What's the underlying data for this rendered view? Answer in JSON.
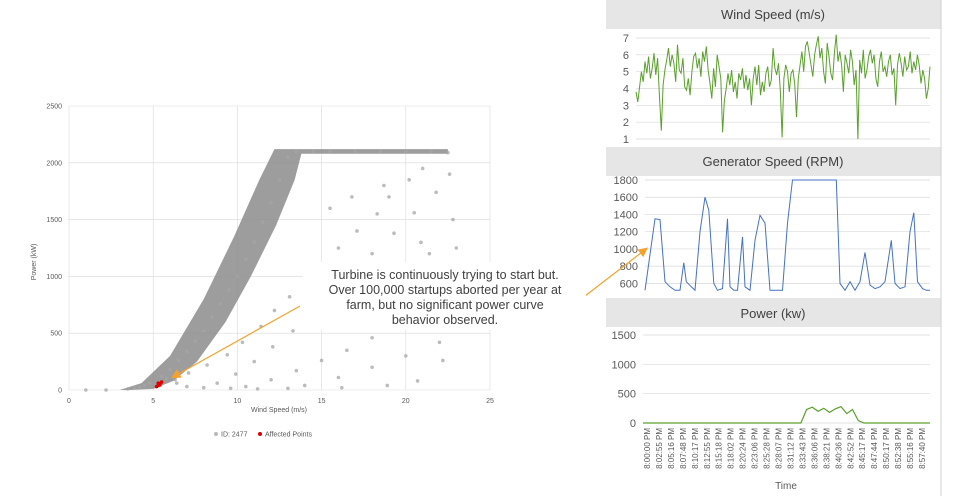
{
  "colors": {
    "scatter": "#8c8c8c",
    "affected": "#e00000",
    "wind": "#5aa02c",
    "gen": "#4472c4",
    "power": "#5aa02c",
    "arrow": "#f4a22c",
    "panel_header": "#e6e6e6",
    "grid": "#d9d9d9",
    "axis_text": "#595959"
  },
  "callout": {
    "lines": [
      "Turbine is continuously trying to start but.",
      "Over 100,000 startups aborted per year at",
      "farm, but no significant power curve",
      "behavior observed."
    ]
  },
  "chart_data": [
    {
      "id": "power-curve",
      "type": "scatter",
      "xlabel": "Wind Speed (m/s)",
      "ylabel": "Power (kW)",
      "xlim": [
        0,
        25
      ],
      "ylim": [
        0,
        2500
      ],
      "x_ticks": [
        "0",
        "5",
        "10",
        "15",
        "20",
        "25"
      ],
      "y_ticks": [
        "0",
        "500",
        "1000",
        "1500",
        "2000",
        "2500"
      ],
      "grid": true,
      "legend_position": "bottom",
      "legend": [
        "ID: 2477",
        "Affected Points"
      ],
      "series": [
        {
          "name": "ID: 2477",
          "description_curve": [
            [
              3,
              0
            ],
            [
              5,
              80
            ],
            [
              7,
              400
            ],
            [
              9,
              900
            ],
            [
              11,
              1450
            ],
            [
              12.5,
              1900
            ],
            [
              13.2,
              2100
            ],
            [
              22,
              2100
            ]
          ],
          "points": [
            [
              3.5,
              10
            ],
            [
              4.2,
              25
            ],
            [
              4.8,
              60
            ],
            [
              5.5,
              120
            ],
            [
              6.0,
              180
            ],
            [
              6.5,
              260
            ],
            [
              7.0,
              340
            ],
            [
              7.5,
              430
            ],
            [
              8.0,
              520
            ],
            [
              8.5,
              640
            ],
            [
              9.0,
              760
            ],
            [
              9.5,
              880
            ],
            [
              10.0,
              1000
            ],
            [
              10.5,
              1150
            ],
            [
              11.0,
              1300
            ],
            [
              11.5,
              1480
            ],
            [
              12.0,
              1650
            ],
            [
              12.5,
              1850
            ],
            [
              13.0,
              2050
            ],
            [
              13.5,
              2100
            ],
            [
              14.5,
              2100
            ],
            [
              15.5,
              2100
            ],
            [
              17.0,
              2100
            ],
            [
              18.5,
              2100
            ],
            [
              20.0,
              2100
            ],
            [
              21.5,
              2100
            ],
            [
              22.5,
              2090
            ],
            [
              5.2,
              40
            ],
            [
              6.3,
              90
            ],
            [
              7.1,
              150
            ],
            [
              8.2,
              220
            ],
            [
              9.4,
              310
            ],
            [
              10.3,
              420
            ],
            [
              11.4,
              560
            ],
            [
              12.2,
              700
            ],
            [
              13.1,
              820
            ],
            [
              14.0,
              950
            ],
            [
              15.2,
              1100
            ],
            [
              16.0,
              1250
            ],
            [
              17.1,
              1400
            ],
            [
              18.3,
              1550
            ],
            [
              19.0,
              1700
            ],
            [
              20.2,
              1850
            ],
            [
              21.0,
              1950
            ],
            [
              8.8,
              60
            ],
            [
              9.9,
              140
            ],
            [
              11.0,
              250
            ],
            [
              12.1,
              380
            ],
            [
              13.3,
              520
            ],
            [
              14.6,
              680
            ],
            [
              15.8,
              850
            ],
            [
              16.9,
              1020
            ],
            [
              18.0,
              1200
            ],
            [
              19.3,
              1380
            ],
            [
              20.5,
              1560
            ],
            [
              21.8,
              1740
            ],
            [
              22.6,
              1900
            ],
            [
              10.5,
              30
            ],
            [
              12.0,
              90
            ],
            [
              13.5,
              170
            ],
            [
              15.0,
              260
            ],
            [
              16.5,
              350
            ],
            [
              18.0,
              460
            ],
            [
              19.5,
              580
            ],
            [
              21.0,
              700
            ],
            [
              22.5,
              820
            ],
            [
              23.0,
              1000
            ],
            [
              14.0,
              40
            ],
            [
              16.0,
              110
            ],
            [
              18.0,
              200
            ],
            [
              20.0,
              300
            ],
            [
              22.0,
              420
            ],
            [
              23.2,
              560
            ],
            [
              17.5,
              620
            ],
            [
              19.8,
              900
            ],
            [
              21.4,
              1200
            ],
            [
              22.8,
              1500
            ],
            [
              15.5,
              1600
            ],
            [
              16.8,
              1700
            ],
            [
              18.7,
              1800
            ],
            [
              20.9,
              1300
            ],
            [
              17.9,
              960
            ],
            [
              19.1,
              1090
            ],
            [
              23.0,
              1250
            ],
            [
              22.2,
              260
            ],
            [
              20.7,
              80
            ],
            [
              18.9,
              40
            ],
            [
              16.2,
              20
            ],
            [
              13.0,
              15
            ],
            [
              11.2,
              10
            ],
            [
              9.6,
              15
            ],
            [
              8.0,
              20
            ],
            [
              7.0,
              30
            ],
            [
              6.4,
              60
            ],
            [
              5.8,
              100
            ],
            [
              4.5,
              40
            ],
            [
              3.9,
              20
            ],
            [
              1.0,
              0
            ],
            [
              2.2,
              0
            ]
          ]
        },
        {
          "name": "Affected Points",
          "points": [
            [
              5.2,
              30
            ],
            [
              5.3,
              40
            ],
            [
              5.4,
              55
            ],
            [
              5.5,
              70
            ],
            [
              5.3,
              60
            ],
            [
              5.4,
              45
            ]
          ]
        }
      ]
    },
    {
      "id": "wind-speed",
      "type": "line",
      "title": "Wind Speed (m/s)",
      "ylim": [
        1,
        7
      ],
      "y_ticks": [
        "1",
        "2",
        "3",
        "4",
        "5",
        "6",
        "7"
      ],
      "series": [
        {
          "name": "Wind Speed (m/s)",
          "values": [
            3.8,
            3.2,
            4.1,
            5.0,
            4.4,
            5.6,
            4.9,
            5.9,
            4.6,
            5.2,
            6.1,
            4.8,
            5.8,
            3.6,
            1.5,
            4.2,
            5.1,
            5.7,
            6.4,
            5.3,
            6.0,
            5.5,
            4.4,
            6.6,
            5.1,
            4.9,
            5.8,
            4.1,
            3.9,
            4.6,
            3.6,
            5.0,
            5.9,
            6.1,
            5.2,
            5.8,
            4.7,
            6.2,
            5.6,
            6.5,
            5.1,
            4.3,
            3.4,
            5.2,
            4.1,
            6.0,
            5.3,
            4.6,
            1.4,
            3.3,
            4.0,
            4.9,
            4.2,
            5.1,
            3.8,
            4.4,
            3.4,
            4.9,
            4.5,
            5.2,
            4.0,
            4.8,
            3.9,
            4.6,
            3.0,
            4.6,
            5.3,
            4.2,
            5.4,
            3.6,
            4.4,
            3.8,
            4.9,
            5.3,
            4.1,
            4.5,
            6.4,
            5.2,
            4.8,
            5.5,
            3.9,
            1.1,
            4.6,
            5.4,
            5.0,
            3.8,
            4.9,
            5.1,
            4.3,
            2.3,
            4.6,
            5.4,
            6.2,
            5.0,
            6.5,
            6.8,
            6.1,
            5.4,
            4.7,
            6.0,
            6.6,
            7.1,
            5.8,
            6.4,
            5.0,
            4.3,
            6.7,
            5.9,
            4.9,
            4.5,
            6.1,
            7.2,
            5.6,
            6.2,
            5.4,
            3.8,
            6.0,
            5.5,
            4.9,
            6.3,
            5.6,
            4.2,
            5.1,
            1.0,
            5.7,
            4.9,
            6.3,
            4.6,
            5.1,
            5.9,
            6.3,
            5.5,
            6.0,
            4.6,
            4.1,
            5.6,
            6.2,
            5.0,
            5.3,
            4.7,
            5.6,
            6.0,
            4.8,
            5.2,
            3.0,
            5.4,
            6.1,
            5.5,
            4.7,
            5.9,
            5.1,
            5.3,
            6.2,
            4.9,
            5.6,
            5.1,
            6.0,
            5.4,
            4.3,
            5.1,
            4.6,
            3.4,
            4.0,
            5.3
          ]
        }
      ]
    },
    {
      "id": "generator-speed",
      "type": "line",
      "title": "Generator Speed (RPM)",
      "ylim": [
        500,
        1800
      ],
      "y_ticks": [
        "600",
        "800",
        "1000",
        "1200",
        "1400",
        "1600",
        "1800"
      ],
      "series": [
        {
          "name": "Generator Speed (RPM)",
          "points": [
            [
              0.0,
              520
            ],
            [
              0.08,
              1350
            ],
            [
              0.12,
              1340
            ],
            [
              0.16,
              620
            ],
            [
              0.2,
              560
            ],
            [
              0.24,
              520
            ],
            [
              0.28,
              520
            ],
            [
              0.31,
              840
            ],
            [
              0.33,
              620
            ],
            [
              0.37,
              560
            ],
            [
              0.4,
              520
            ],
            [
              0.44,
              1200
            ],
            [
              0.48,
              1600
            ],
            [
              0.51,
              1450
            ],
            [
              0.55,
              600
            ],
            [
              0.58,
              520
            ],
            [
              0.62,
              540
            ],
            [
              0.66,
              1350
            ],
            [
              0.68,
              560
            ],
            [
              0.71,
              520
            ],
            [
              0.74,
              520
            ],
            [
              0.78,
              1140
            ],
            [
              0.8,
              560
            ],
            [
              0.84,
              520
            ],
            [
              0.88,
              1100
            ],
            [
              0.92,
              1390
            ],
            [
              0.96,
              1300
            ],
            [
              1.0,
              520
            ],
            [
              1.04,
              520
            ],
            [
              1.1,
              520
            ],
            [
              1.14,
              1300
            ],
            [
              1.18,
              1800
            ],
            [
              1.5,
              1800
            ],
            [
              1.53,
              1800
            ],
            [
              1.56,
              600
            ],
            [
              1.6,
              520
            ],
            [
              1.64,
              620
            ],
            [
              1.68,
              520
            ],
            [
              1.72,
              620
            ],
            [
              1.76,
              960
            ],
            [
              1.8,
              580
            ],
            [
              1.84,
              540
            ],
            [
              1.88,
              560
            ],
            [
              1.92,
              620
            ],
            [
              1.97,
              1100
            ],
            [
              2.0,
              600
            ],
            [
              2.04,
              540
            ],
            [
              2.08,
              560
            ],
            [
              2.12,
              1200
            ],
            [
              2.15,
              1420
            ],
            [
              2.18,
              620
            ],
            [
              2.22,
              540
            ],
            [
              2.25,
              520
            ],
            [
              2.28,
              520
            ]
          ]
        }
      ]
    },
    {
      "id": "power",
      "type": "line",
      "title": "Power (kw)",
      "xlabel": "Time",
      "ylim": [
        0,
        1500
      ],
      "y_ticks": [
        "0",
        "500",
        "1000",
        "1500"
      ],
      "x_ticks": [
        "8:00:00 PM",
        "8:02:55 PM",
        "8:05:16 PM",
        "8:07:48 PM",
        "8:10:17 PM",
        "8:12:55 PM",
        "8:15:18 PM",
        "8:18:02 PM",
        "8:20:24 PM",
        "8:23:06 PM",
        "8:25:28 PM",
        "8:28:07 PM",
        "8:31:12 PM",
        "8:33:43 PM",
        "8:36:06 PM",
        "8:38:21 PM",
        "8:40:36 PM",
        "8:42:52 PM",
        "8:45:17 PM",
        "8:47:44 PM",
        "8:50:17 PM",
        "8:52:38 PM",
        "8:55:16 PM",
        "8:57:40 PM"
      ],
      "series": [
        {
          "name": "Power (kw)",
          "points": [
            [
              0.0,
              0
            ],
            [
              0.55,
              0
            ],
            [
              0.57,
              230
            ],
            [
              0.59,
              270
            ],
            [
              0.61,
              200
            ],
            [
              0.63,
              250
            ],
            [
              0.65,
              180
            ],
            [
              0.67,
              240
            ],
            [
              0.69,
              280
            ],
            [
              0.71,
              160
            ],
            [
              0.73,
              230
            ],
            [
              0.75,
              40
            ],
            [
              0.77,
              0
            ],
            [
              1.0,
              0
            ]
          ]
        }
      ]
    }
  ]
}
